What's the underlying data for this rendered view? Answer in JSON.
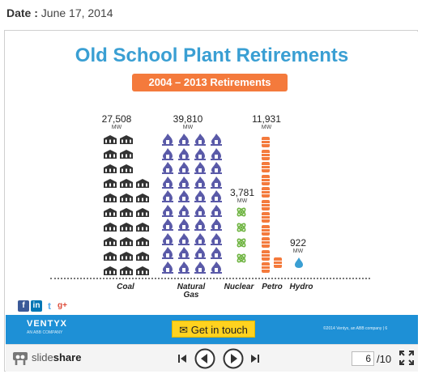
{
  "date": {
    "label": "Date :",
    "value": "June 17, 2014"
  },
  "slide": {
    "title": "Old School Plant Retirements",
    "badge": "2004 – 2013 Retirements",
    "unit": "MW",
    "groups": [
      {
        "id": "coal",
        "value": "27,508",
        "category": "Coal",
        "icon": "factory-icon",
        "color": "#333333"
      },
      {
        "id": "gas",
        "value": "39,810",
        "category": "Natural Gas",
        "icon": "gas-flame-icon",
        "color": "#5a5aa8"
      },
      {
        "id": "nuclear",
        "value": "3,781",
        "category": "Nuclear",
        "icon": "atom-icon",
        "color": "#6db33f"
      },
      {
        "id": "petro",
        "value": "11,931",
        "category": "Petro",
        "icon": "oil-barrel-icon",
        "color": "#f47a3c"
      },
      {
        "id": "hydro",
        "value": "922",
        "category": "Hydro",
        "icon": "water-drop-icon",
        "color": "#3a9fd3"
      }
    ],
    "category_labels": {
      "coal": "Coal",
      "gas_line1": "Natural",
      "gas_line2": "Gas",
      "nuclear": "Nuclear",
      "petro": "Petro",
      "hydro": "Hydro"
    },
    "social": {
      "facebook": "f",
      "linkedin": "in",
      "twitter": "t",
      "googleplus": "g+"
    },
    "footer": {
      "brand": "VENTYX",
      "brand_sub": "AN ABB COMPANY",
      "cta": "Get in touch",
      "copyright": "©2014 Ventyx, an ABB company | 6"
    }
  },
  "player": {
    "logo_text_light": "slide",
    "logo_text_bold": "share",
    "current_page": "6",
    "total_pages": "/10"
  },
  "colors": {
    "title": "#3a9fd3",
    "badge": "#f47a3c",
    "footer": "#1e90d6",
    "cta": "#ffd21f"
  }
}
